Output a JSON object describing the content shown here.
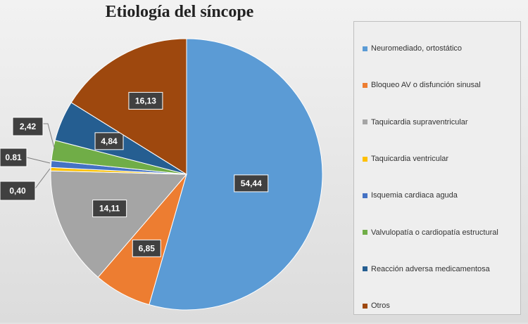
{
  "chart_data": {
    "type": "pie",
    "title": "Etiología del síncope",
    "legend_position": "right",
    "slices": [
      {
        "name": "Neuromediado, ortostático",
        "value": 54.44,
        "label": "54,44",
        "color": "#5b9bd5"
      },
      {
        "name": "Bloqueo AV o disfunción sinusal",
        "value": 6.85,
        "label": "6,85",
        "color": "#ed7d31"
      },
      {
        "name": "Taquicardia supraventricular",
        "value": 14.11,
        "label": "14,11",
        "color": "#a5a5a5"
      },
      {
        "name": "Taquicardia ventricular",
        "value": 0.4,
        "label": "0,40",
        "color": "#ffc000"
      },
      {
        "name": "Isquemia cardiaca aguda",
        "value": 0.81,
        "label": "0.81",
        "color": "#4472c4"
      },
      {
        "name": "Valvulopatía o cardiopatía estructural",
        "value": 2.42,
        "label": "2,42",
        "color": "#70ad47"
      },
      {
        "name": "Reacción adversa medicamentosa",
        "value": 4.84,
        "label": "4,84",
        "color": "#255e91"
      },
      {
        "name": "Otros",
        "value": 16.13,
        "label": "16,13",
        "color": "#9e480e"
      }
    ]
  }
}
